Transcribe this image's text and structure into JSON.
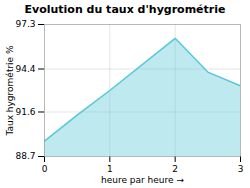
{
  "chart_data": {
    "type": "area",
    "title": "Evolution du taux d'hygrométrie",
    "xlabel": "heure par heure",
    "ylabel": "Taux hygrométrie %",
    "x": [
      0,
      0.5,
      1,
      2,
      2.5,
      3
    ],
    "values": [
      89.7,
      91.4,
      93.0,
      96.4,
      94.2,
      93.3
    ],
    "xlim": [
      0,
      3
    ],
    "xticks": [
      0,
      1,
      2,
      3
    ],
    "ylim": [
      88.7,
      97.3
    ],
    "yticks": [
      88.7,
      91.6,
      94.4,
      97.3
    ],
    "color": "#5bc8d8",
    "grid": true
  }
}
